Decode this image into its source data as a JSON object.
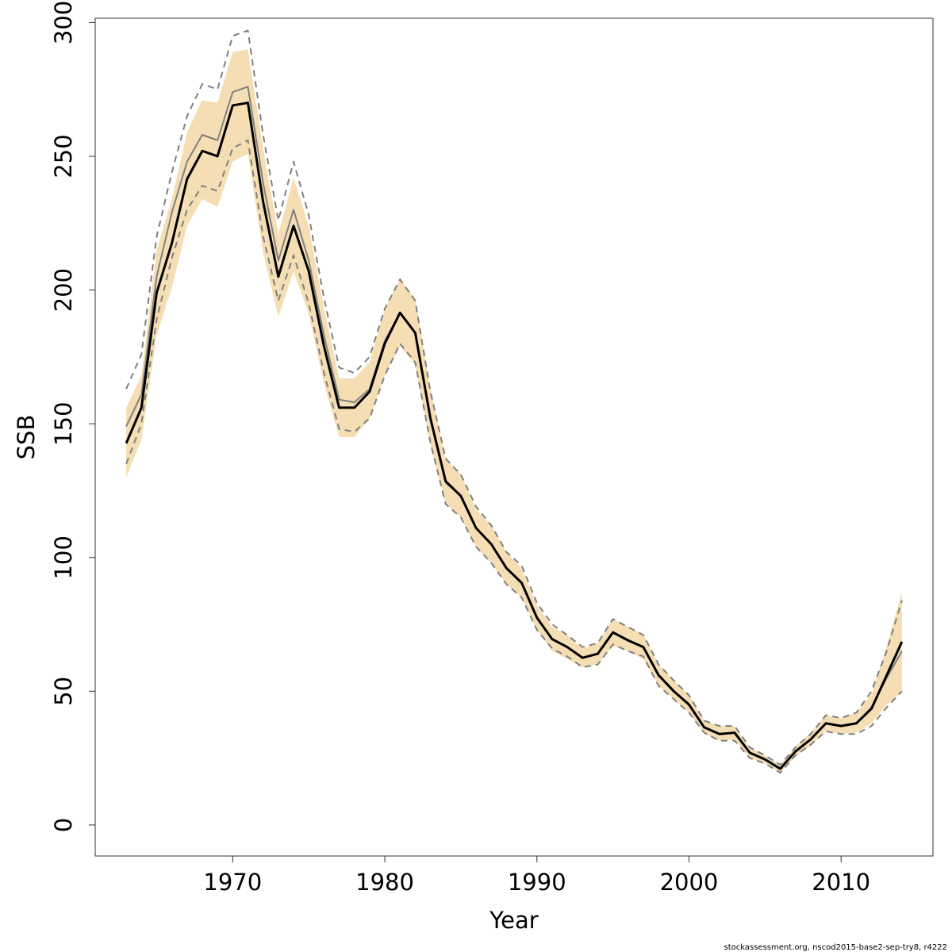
{
  "chart_data": {
    "type": "line",
    "x_label": "Year",
    "y_label": "SSB",
    "footnote": "stockassessment.org, nscod2015-base2-sep-try8, r4222",
    "x": [
      1963,
      1964,
      1965,
      1966,
      1967,
      1968,
      1969,
      1970,
      1971,
      1972,
      1973,
      1974,
      1975,
      1976,
      1977,
      1978,
      1979,
      1980,
      1981,
      1982,
      1983,
      1984,
      1985,
      1986,
      1987,
      1988,
      1989,
      1990,
      1991,
      1992,
      1993,
      1994,
      1995,
      1996,
      1997,
      1998,
      1999,
      2000,
      2001,
      2002,
      2003,
      2004,
      2005,
      2006,
      2007,
      2008,
      2009,
      2010,
      2011,
      2012,
      2013,
      2014
    ],
    "xlim": [
      1960.96,
      2016.04
    ],
    "xticks": [
      1970,
      1980,
      1990,
      2000,
      2010
    ],
    "ylim": [
      -11.6,
      301.6
    ],
    "yticks": [
      0,
      50,
      100,
      150,
      200,
      250,
      300
    ],
    "band": {
      "color": "#f5deb3",
      "lower": [
        130,
        144,
        183,
        201,
        224,
        234,
        231,
        248,
        251,
        214,
        190,
        207,
        191,
        165,
        145,
        145,
        152,
        168,
        179,
        172,
        142,
        120,
        115,
        104,
        98,
        90,
        85,
        73,
        65,
        62,
        59,
        60,
        67,
        65,
        62,
        52,
        47,
        42,
        34,
        31.5,
        32,
        25,
        23,
        19.5,
        25.5,
        29.5,
        35,
        34,
        34.5,
        38,
        45,
        49.5
      ],
      "upper": [
        156,
        168,
        215,
        234,
        259,
        271,
        270,
        289,
        290,
        253,
        221,
        242,
        224,
        193,
        167,
        167,
        173,
        193,
        204,
        197,
        163,
        137,
        131,
        118,
        112,
        102,
        96,
        82,
        74,
        71,
        66,
        68,
        77,
        74,
        71,
        60,
        54,
        48.5,
        39,
        37,
        37,
        29,
        26,
        22.5,
        29.5,
        34.5,
        41,
        40,
        42,
        49,
        67,
        87
      ]
    },
    "series": [
      {
        "color": "#808080",
        "dash": true,
        "width": 2,
        "values": [
          135,
          150,
          189,
          212,
          230,
          239,
          237,
          253,
          256,
          220,
          196,
          213,
          195,
          169,
          148,
          147,
          152,
          168,
          180,
          173,
          143,
          120,
          115,
          104,
          98,
          90,
          85,
          73,
          66,
          63,
          59,
          60,
          67.5,
          65,
          63,
          52,
          47,
          42,
          34.5,
          31.5,
          31.5,
          25,
          23,
          19.5,
          26,
          30,
          35,
          34,
          34,
          37,
          44,
          50
        ]
      },
      {
        "color": "#808080",
        "dash": true,
        "width": 2,
        "values": [
          163,
          176,
          220,
          244,
          265,
          277,
          275,
          295,
          297,
          258,
          226,
          248,
          228,
          197,
          171,
          169,
          175,
          193,
          204,
          196,
          162,
          137,
          131,
          119,
          112,
          102,
          97,
          83,
          75,
          71,
          66.5,
          68,
          77,
          74,
          71,
          60,
          54,
          48.5,
          39,
          37,
          37,
          29,
          26,
          22.5,
          29,
          34,
          41,
          40,
          42,
          50,
          65,
          84
        ]
      },
      {
        "color": "#808080",
        "dash": false,
        "width": 2,
        "values": [
          149,
          161,
          205,
          229,
          248,
          258,
          256,
          274,
          276,
          240,
          211,
          230,
          211,
          183,
          159,
          158,
          163,
          181,
          191.5,
          184,
          152,
          128,
          123,
          111,
          105,
          96,
          90.5,
          77.5,
          69.5,
          66.5,
          62.5,
          64,
          72,
          69,
          66.5,
          56,
          50,
          45,
          36.5,
          34,
          34.5,
          27,
          24.5,
          21,
          27.5,
          32,
          38,
          37,
          38,
          44,
          55,
          65
        ]
      },
      {
        "color": "#000000",
        "dash": false,
        "width": 3,
        "values": [
          142.7,
          156,
          199,
          217.5,
          241.5,
          252,
          250,
          269,
          270,
          233,
          205,
          224,
          207,
          179,
          156,
          156,
          162,
          180,
          191.5,
          184,
          152,
          128.5,
          123,
          111,
          105,
          96,
          90.5,
          77.5,
          69.5,
          66.5,
          62.5,
          64,
          72,
          69,
          66.5,
          56,
          50,
          45,
          36.5,
          34,
          34.5,
          27,
          24.5,
          21,
          27.5,
          32,
          38,
          37,
          38,
          43.5,
          56,
          68.5
        ]
      }
    ]
  }
}
